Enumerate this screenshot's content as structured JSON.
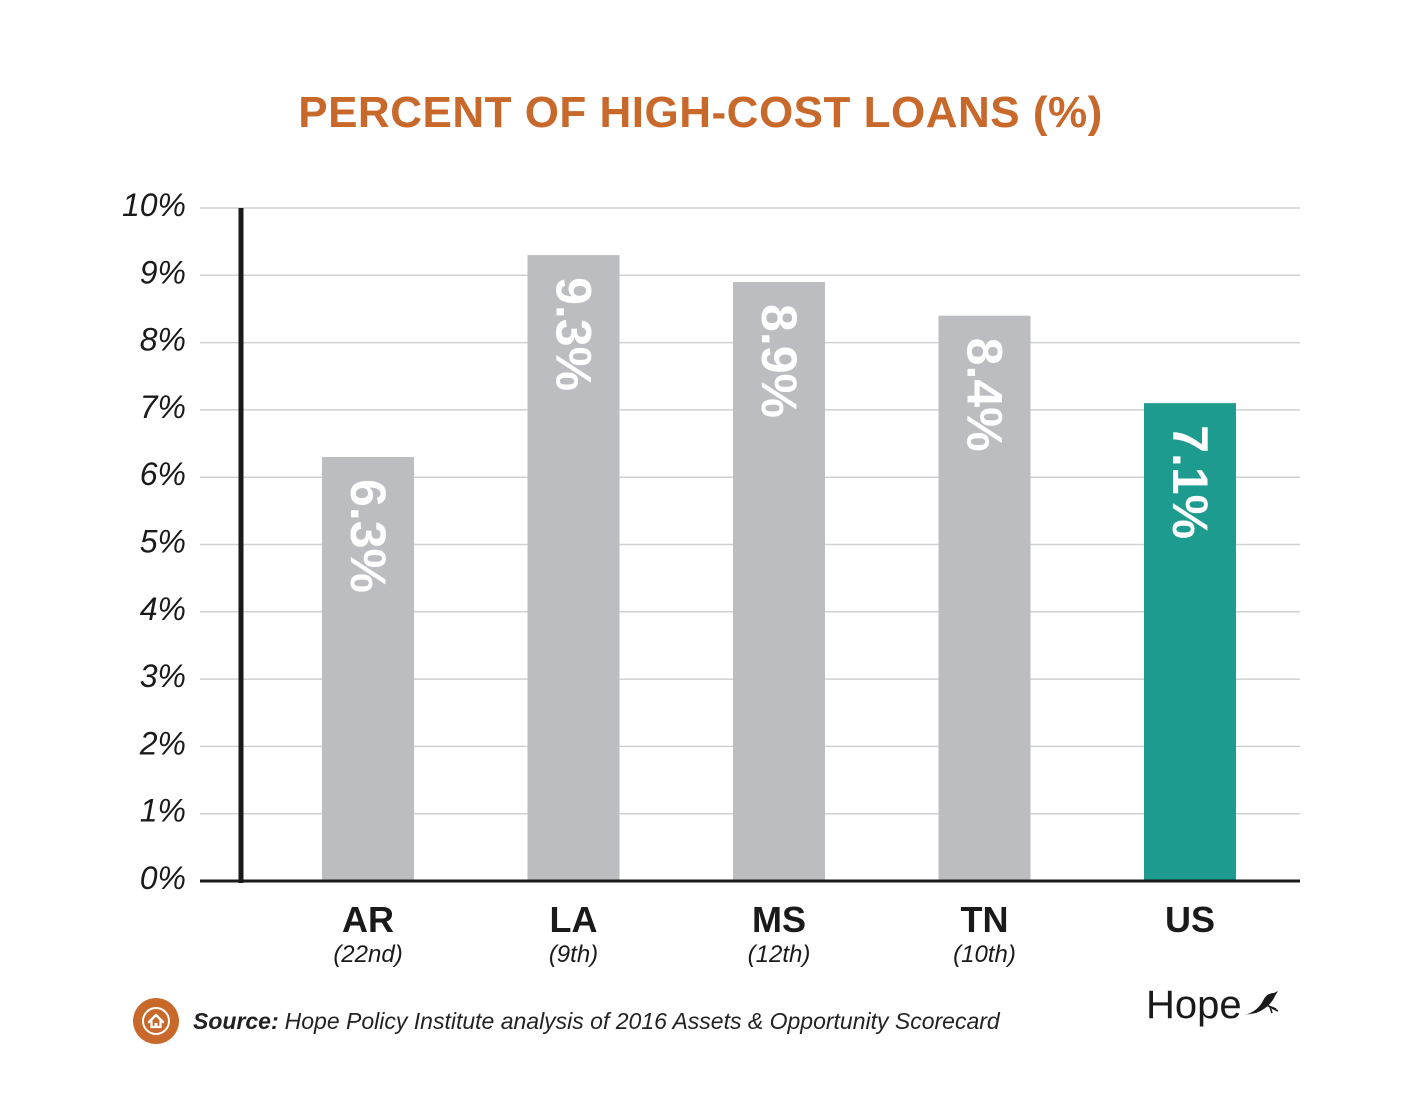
{
  "colors": {
    "title": "#c8682b",
    "bar_default": "#bcbdc0",
    "bar_highlight": "#1c9b8e",
    "gridline": "#d0d1d3",
    "axis": "#1a1a1a",
    "bar_label": "#ffffff",
    "badge": "#c8682b"
  },
  "chart_data": {
    "type": "bar",
    "title": "PERCENT OF HIGH-COST LOANS (%)",
    "xlabel": "",
    "ylabel": "",
    "ylim": [
      0,
      10
    ],
    "y_ticks": [
      "0%",
      "1%",
      "2%",
      "3%",
      "4%",
      "5%",
      "6%",
      "7%",
      "8%",
      "9%",
      "10%"
    ],
    "grid": true,
    "categories": [
      "AR",
      "LA",
      "MS",
      "TN",
      "US"
    ],
    "category_ranks": [
      "(22nd)",
      "(9th)",
      "(12th)",
      "(10th)",
      ""
    ],
    "values": [
      6.3,
      9.3,
      8.9,
      8.4,
      7.1
    ],
    "data_labels": [
      "6.3%",
      "9.3%",
      "8.9%",
      "8.4%",
      "7.1%"
    ],
    "highlight_category": "US"
  },
  "footer": {
    "source_label": "Source:",
    "source_text": "Hope Policy Institute analysis of 2016 Assets & Opportunity Scorecard",
    "logo_text": "Hope",
    "badge_icon": "house-icon",
    "logo_icon": "dove-icon"
  }
}
